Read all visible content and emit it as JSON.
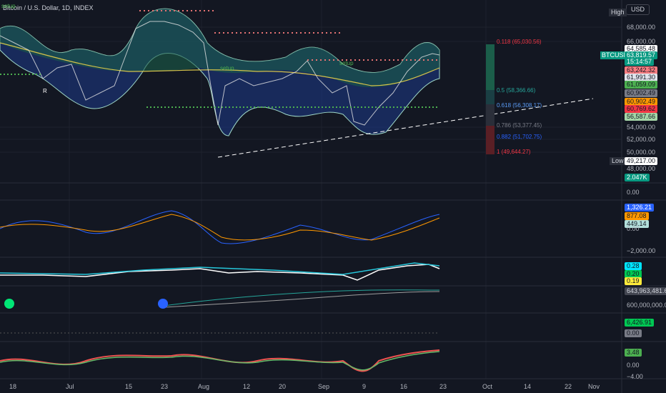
{
  "header": {
    "title": "Bitcoin / U.S. Dollar, 1D, INDEX",
    "currency": "USD",
    "high_label": "High",
    "low_label": "Low",
    "symbol": "BTCUSD"
  },
  "price_scale": [
    "68,000.00",
    "66,000.00",
    "64,585.48",
    "63,819.57",
    "15:14:57",
    "63,242.32",
    "61,991.30",
    "61,059.09",
    "60,902.49",
    "60,902.49",
    "60,769.62",
    "56,587.66",
    "54,000.00",
    "52,000.00",
    "50,000.00",
    "49,217.00",
    "48,000.00",
    "2.047K"
  ],
  "fib_levels": [
    "0.118 (65,030.56)",
    "0.5 (58,366.66)",
    "0.618 (56,308.17)",
    "0.786 (53,377.45)",
    "0.882 (51,702.75)",
    "1 (49,644.27)"
  ],
  "panel_scales": [
    "0.00",
    "1,326.21",
    "877.08",
    "449.14",
    "0.00",
    "−2,000.00",
    "0.28",
    "0.20",
    "0.19",
    "643,963,481.64",
    "600,000,000.00",
    "6,426.91",
    "0.00",
    "3.48",
    "0.00",
    "−4.00"
  ],
  "time_axis": [
    "18",
    "Jul",
    "15",
    "23",
    "Aug",
    "12",
    "20",
    "Sep",
    "9",
    "16",
    "23",
    "Oct",
    "14",
    "22",
    "Nov"
  ],
  "annotations": [
    "setup",
    "setup",
    "setup",
    "R"
  ]
}
